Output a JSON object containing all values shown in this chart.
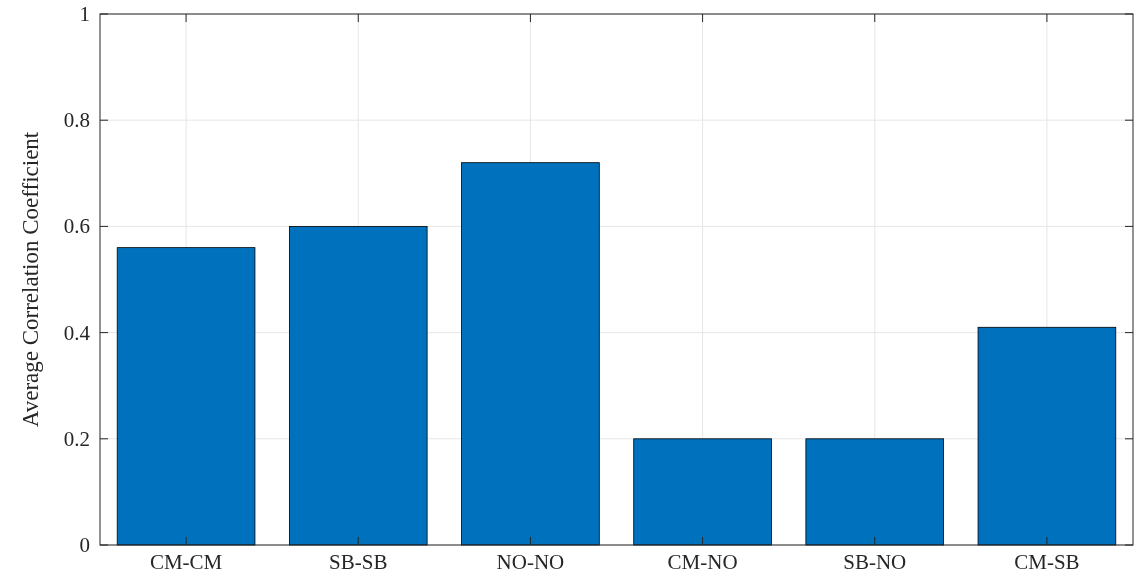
{
  "chart_data": {
    "type": "bar",
    "ylabel": "Average Correlation Coefficient",
    "categories": [
      "CM-CM",
      "SB-SB",
      "NO-NO",
      "CM-NO",
      "SB-NO",
      "CM-SB"
    ],
    "values": [
      0.56,
      0.6,
      0.72,
      0.2,
      0.2,
      0.41
    ],
    "color": "#0072bd",
    "ylim": [
      0,
      1
    ],
    "yticks": [
      0,
      0.2,
      0.4,
      0.6,
      0.8,
      1
    ],
    "grid": true
  }
}
